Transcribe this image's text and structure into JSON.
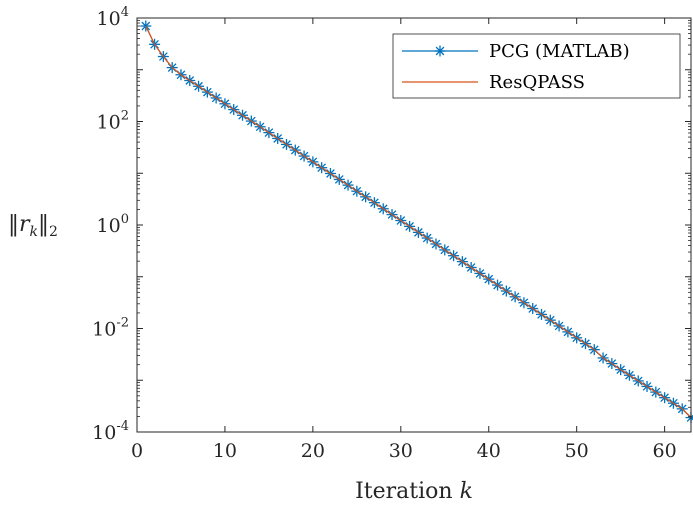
{
  "chart_data": {
    "type": "line",
    "xlabel": "Iteration k",
    "ylabel": "||r_k||_2",
    "xlabel_parts": {
      "text": "Iteration ",
      "var": "k"
    },
    "ylabel_parts": {
      "left": "‖",
      "var": "r",
      "sub": "k",
      "right": "‖",
      "norm_sub": "2"
    },
    "xlim": [
      0,
      63
    ],
    "ylim": [
      0.0001,
      10000
    ],
    "yscale": "log",
    "grid": false,
    "legend_position": "top-right",
    "x_ticks": [
      0,
      10,
      20,
      30,
      40,
      50,
      60
    ],
    "x_tick_labels": [
      "0",
      "10",
      "20",
      "30",
      "40",
      "50",
      "60"
    ],
    "y_ticks": [
      {
        "value": 10000,
        "base": "10",
        "exp": "4"
      },
      {
        "value": 100,
        "base": "10",
        "exp": "2"
      },
      {
        "value": 1,
        "base": "10",
        "exp": "0"
      },
      {
        "value": 0.01,
        "base": "10",
        "exp": "-2"
      },
      {
        "value": 0.0001,
        "base": "10",
        "exp": "-4"
      }
    ],
    "series": [
      {
        "name": "PCG (MATLAB)",
        "color": "#0072BD",
        "marker": "asterisk",
        "x": [
          1,
          2,
          3,
          4,
          5,
          6,
          7,
          8,
          9,
          10,
          11,
          12,
          13,
          14,
          15,
          16,
          17,
          18,
          19,
          20,
          21,
          22,
          23,
          24,
          25,
          26,
          27,
          28,
          29,
          30,
          31,
          32,
          33,
          34,
          35,
          36,
          37,
          38,
          39,
          40,
          41,
          42,
          43,
          44,
          45,
          46,
          47,
          48,
          49,
          50,
          51,
          52,
          53,
          54,
          55,
          56,
          57,
          58,
          59,
          60,
          61,
          62,
          63
        ],
        "values": [
          7000,
          3100,
          1800,
          1100,
          800,
          620,
          480,
          370,
          285,
          220,
          170,
          132,
          102,
          79,
          61,
          47,
          36,
          28,
          21.5,
          16.6,
          12.8,
          9.9,
          7.6,
          5.9,
          4.5,
          3.5,
          2.7,
          2.06,
          1.59,
          1.22,
          0.94,
          0.72,
          0.56,
          0.43,
          0.33,
          0.255,
          0.196,
          0.151,
          0.116,
          0.09,
          0.069,
          0.053,
          0.041,
          0.0315,
          0.0243,
          0.0187,
          0.0145,
          0.0112,
          0.0086,
          0.0066,
          0.0051,
          0.0039,
          0.0027,
          0.0021,
          0.0016,
          0.00125,
          0.00097,
          0.00076,
          0.00059,
          0.00046,
          0.00036,
          0.00028,
          0.00019
        ]
      },
      {
        "name": "ResQPASS",
        "color": "#D95319",
        "marker": "none",
        "x": [
          1,
          2,
          3,
          4,
          5,
          6,
          7,
          8,
          9,
          10,
          11,
          12,
          13,
          14,
          15,
          16,
          17,
          18,
          19,
          20,
          21,
          22,
          23,
          24,
          25,
          26,
          27,
          28,
          29,
          30,
          31,
          32,
          33,
          34,
          35,
          36,
          37,
          38,
          39,
          40,
          41,
          42,
          43,
          44,
          45,
          46,
          47,
          48,
          49,
          50,
          51,
          52,
          53,
          54,
          55,
          56,
          57,
          58,
          59,
          60,
          61,
          62,
          63
        ],
        "values": [
          7000,
          3100,
          1800,
          1100,
          800,
          620,
          480,
          370,
          285,
          220,
          170,
          132,
          102,
          79,
          61,
          47,
          36,
          28,
          21.5,
          16.6,
          12.8,
          9.9,
          7.6,
          5.9,
          4.5,
          3.5,
          2.7,
          2.06,
          1.59,
          1.22,
          0.94,
          0.72,
          0.56,
          0.43,
          0.33,
          0.255,
          0.196,
          0.151,
          0.116,
          0.09,
          0.069,
          0.053,
          0.041,
          0.0315,
          0.0243,
          0.0187,
          0.0145,
          0.0112,
          0.0086,
          0.0066,
          0.0051,
          0.0039,
          0.0027,
          0.0021,
          0.0016,
          0.00125,
          0.00097,
          0.00076,
          0.00059,
          0.00046,
          0.00036,
          0.00028,
          0.00019
        ]
      }
    ]
  }
}
